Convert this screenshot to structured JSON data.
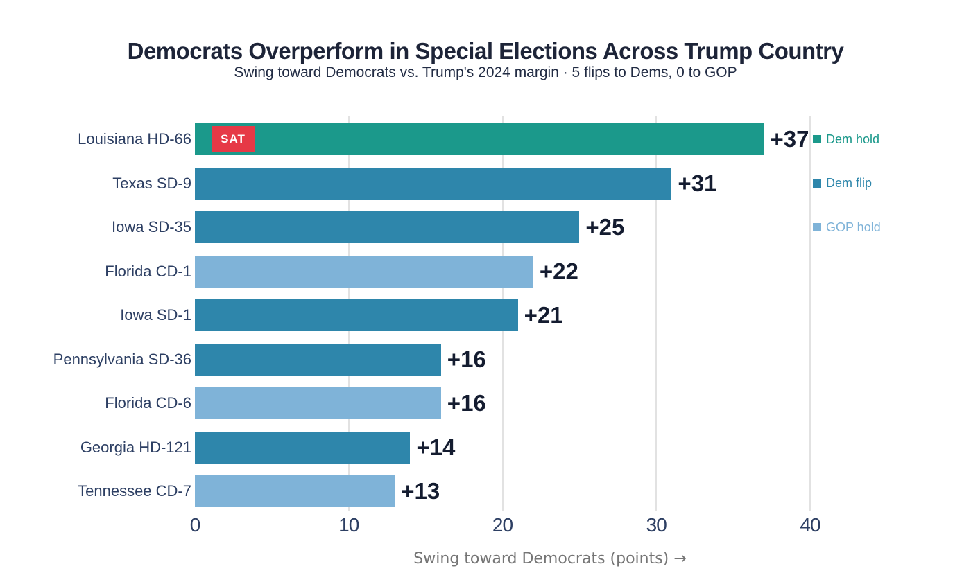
{
  "header": {
    "title": "Democrats Overperform in Special Elections Across Trump Country",
    "subtitle": "Swing toward Democrats vs. Trump's 2024 margin · 5 flips to Dems, 0 to GOP"
  },
  "chart_data": {
    "type": "bar",
    "orientation": "horizontal",
    "title": "Democrats Overperform in Special Elections Across Trump Country",
    "subtitle": "Swing toward Democrats vs. Trump's 2024 margin · 5 flips to Dems, 0 to GOP",
    "xlabel": "Swing toward Democrats (points) →",
    "xticks": [
      0,
      10,
      20,
      30,
      40
    ],
    "xlim": [
      0,
      40.5
    ],
    "grid": "vertical-only",
    "legend_position": "right",
    "bars": [
      {
        "category": "Louisiana HD-66",
        "value": 37,
        "label": "+37",
        "group": "Dem hold",
        "badge": "SAT"
      },
      {
        "category": "Texas SD-9",
        "value": 31,
        "label": "+31",
        "group": "Dem flip"
      },
      {
        "category": "Iowa SD-35",
        "value": 25,
        "label": "+25",
        "group": "Dem flip"
      },
      {
        "category": "Florida CD-1",
        "value": 22,
        "label": "+22",
        "group": "GOP hold"
      },
      {
        "category": "Iowa SD-1",
        "value": 21,
        "label": "+21",
        "group": "Dem flip"
      },
      {
        "category": "Pennsylvania SD-36",
        "value": 16,
        "label": "+16",
        "group": "Dem flip"
      },
      {
        "category": "Florida CD-6",
        "value": 16,
        "label": "+16",
        "group": "GOP hold"
      },
      {
        "category": "Georgia HD-121",
        "value": 14,
        "label": "+14",
        "group": "Dem flip"
      },
      {
        "category": "Tennessee CD-7",
        "value": 13,
        "label": "+13",
        "group": "GOP hold"
      }
    ],
    "legend": [
      {
        "label": "Dem hold",
        "color": "#1b998b"
      },
      {
        "label": "Dem flip",
        "color": "#2e86ab"
      },
      {
        "label": "GOP hold",
        "color": "#7fb3d8"
      }
    ],
    "colors": {
      "Dem hold": "#1b998b",
      "Dem flip": "#2e86ab",
      "GOP hold": "#7fb3d8",
      "badge": "#e63946",
      "grid": "#e2e2e2",
      "value_text": "#141c30",
      "tick_text": "#2d3f63",
      "axis_label_text": "#757575"
    }
  }
}
